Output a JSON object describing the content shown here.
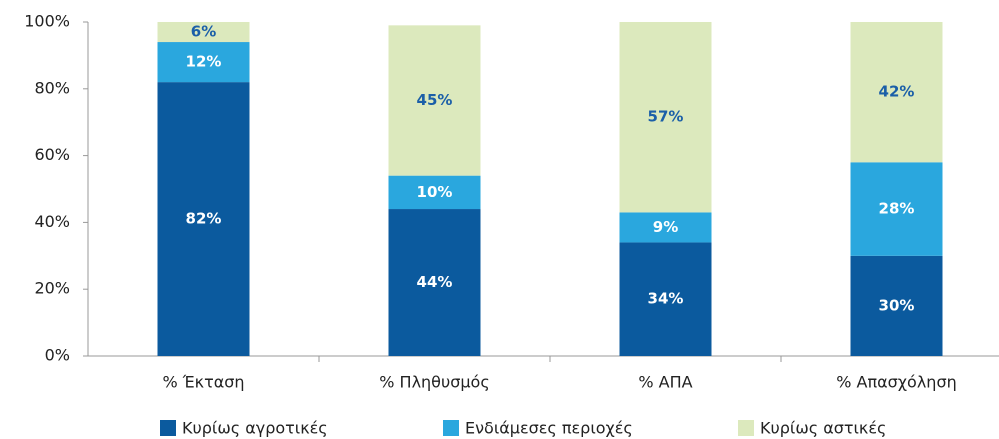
{
  "chart_data": {
    "type": "stacked-bar",
    "categories": [
      "% Έκταση",
      "% Πληθυσμός",
      "% ΑΠΑ",
      "% Απασχόληση"
    ],
    "series": [
      {
        "name": "Κυρίως αγροτικές",
        "color": "#0b5a9e",
        "label_color": "#ffffff",
        "values": [
          82,
          44,
          34,
          30
        ],
        "value_labels": [
          "82%",
          "44%",
          "34%",
          "30%"
        ]
      },
      {
        "name": "Ενδιάμεσες περιοχές",
        "color": "#2aa7de",
        "label_color": "#ffffff",
        "values": [
          12,
          10,
          9,
          28
        ],
        "value_labels": [
          "12%",
          "10%",
          "9%",
          "28%"
        ]
      },
      {
        "name": "Κυρίως αστικές",
        "color": "#dce9bd",
        "label_color": "#1b5fa8",
        "values": [
          6,
          45,
          57,
          42
        ],
        "value_labels": [
          "6%",
          "45%",
          "57%",
          "42%"
        ]
      }
    ],
    "ylim": [
      0,
      100
    ],
    "yticks": [
      {
        "value": 0,
        "label": "0%"
      },
      {
        "value": 20,
        "label": "20%"
      },
      {
        "value": 40,
        "label": "40%"
      },
      {
        "value": 60,
        "label": "60%"
      },
      {
        "value": 80,
        "label": "80%"
      },
      {
        "value": 100,
        "label": "100%"
      }
    ],
    "legend": "bottom"
  }
}
